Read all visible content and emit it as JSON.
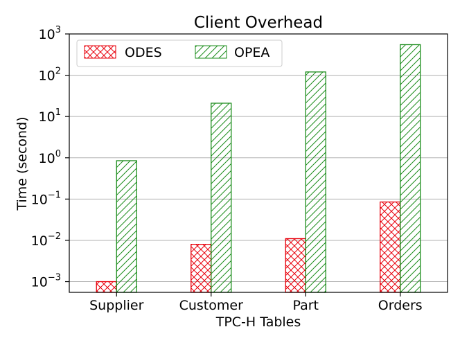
{
  "chart_data": {
    "type": "bar",
    "title": "Client Overhead",
    "xlabel": "TPC-H Tables",
    "ylabel": "Time (second)",
    "yscale": "log",
    "ylim": [
      0.00055,
      1000
    ],
    "yticks": [
      {
        "value": 0.001,
        "base": "10",
        "exp": "−3"
      },
      {
        "value": 0.01,
        "base": "10",
        "exp": "−2"
      },
      {
        "value": 0.1,
        "base": "10",
        "exp": "−1"
      },
      {
        "value": 1,
        "base": "10",
        "exp": "0"
      },
      {
        "value": 10,
        "base": "10",
        "exp": "1"
      },
      {
        "value": 100,
        "base": "10",
        "exp": "2"
      },
      {
        "value": 1000,
        "base": "10",
        "exp": "3"
      }
    ],
    "grid": "horizontal",
    "legend_position": "top-left",
    "categories": [
      "Supplier",
      "Customer",
      "Part",
      "Orders"
    ],
    "series": [
      {
        "name": "ODES",
        "color": "#e8000b",
        "hatch": "crosshatch",
        "values": [
          0.001,
          0.008,
          0.011,
          0.085
        ]
      },
      {
        "name": "OPEA",
        "color": "#1a8c1a",
        "hatch": "diagonal",
        "values": [
          0.85,
          21,
          120,
          550
        ]
      }
    ]
  }
}
